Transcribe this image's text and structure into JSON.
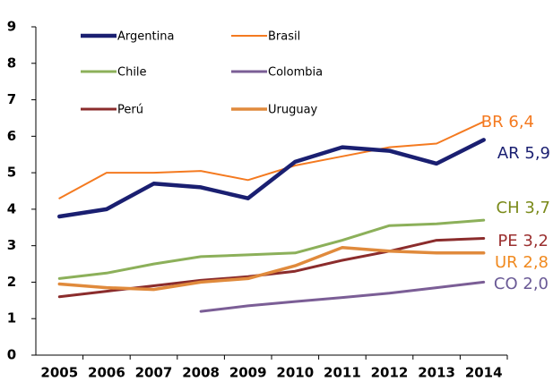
{
  "chart_data": {
    "type": "line",
    "categories": [
      "2005",
      "2006",
      "2007",
      "2008",
      "2009",
      "2010",
      "2011",
      "2012",
      "2013",
      "2014"
    ],
    "ylim": [
      0,
      9
    ],
    "yticks": [
      0,
      1,
      2,
      3,
      4,
      5,
      6,
      7,
      8,
      9
    ],
    "grid": false,
    "series": [
      {
        "name": "Argentina",
        "color": "#1a1f71",
        "label_color": "#1a1f71",
        "values": [
          3.8,
          4.0,
          4.7,
          4.6,
          4.3,
          5.3,
          5.7,
          5.6,
          5.25,
          5.9
        ],
        "value_labels": [
          null,
          null,
          null,
          null,
          null,
          null,
          null,
          null,
          null,
          "AR 5,9"
        ]
      },
      {
        "name": "Brasil",
        "color": "#f47a20",
        "label_color": "#f47a20",
        "values": [
          4.3,
          5.0,
          5.0,
          5.05,
          4.8,
          5.2,
          5.45,
          5.7,
          5.8,
          6.4
        ],
        "value_labels": [
          null,
          null,
          null,
          null,
          null,
          null,
          null,
          null,
          null,
          "BR 6,4"
        ]
      },
      {
        "name": "Chile",
        "color": "#8cb05a",
        "label_color": "#7a8a1a",
        "values": [
          2.1,
          2.25,
          2.5,
          2.7,
          2.75,
          2.8,
          3.15,
          3.55,
          3.6,
          3.7
        ],
        "value_labels": [
          null,
          null,
          null,
          null,
          null,
          null,
          null,
          null,
          null,
          "CH 3,7"
        ]
      },
      {
        "name": "Colombia",
        "color": "#7b5e96",
        "label_color": "#6a5a96",
        "values": [
          null,
          null,
          null,
          1.2,
          1.35,
          1.47,
          1.58,
          1.7,
          1.85,
          2.0
        ],
        "value_labels": [
          null,
          null,
          null,
          null,
          null,
          null,
          null,
          null,
          null,
          "CO 2,0"
        ]
      },
      {
        "name": "Perú",
        "color": "#8b2c2c",
        "label_color": "#9b3030",
        "values": [
          1.6,
          1.75,
          1.9,
          2.05,
          2.15,
          2.3,
          2.6,
          2.85,
          3.15,
          3.2
        ],
        "value_labels": [
          null,
          null,
          null,
          null,
          null,
          null,
          null,
          null,
          null,
          "PE 3,2"
        ]
      },
      {
        "name": "Uruguay",
        "color": "#e08a3c",
        "label_color": "#f08a20",
        "values": [
          1.95,
          1.85,
          1.8,
          2.0,
          2.1,
          2.45,
          2.95,
          2.85,
          2.8,
          2.8
        ],
        "value_labels": [
          null,
          null,
          null,
          null,
          null,
          null,
          null,
          null,
          null,
          "UR 2,8"
        ]
      }
    ]
  }
}
